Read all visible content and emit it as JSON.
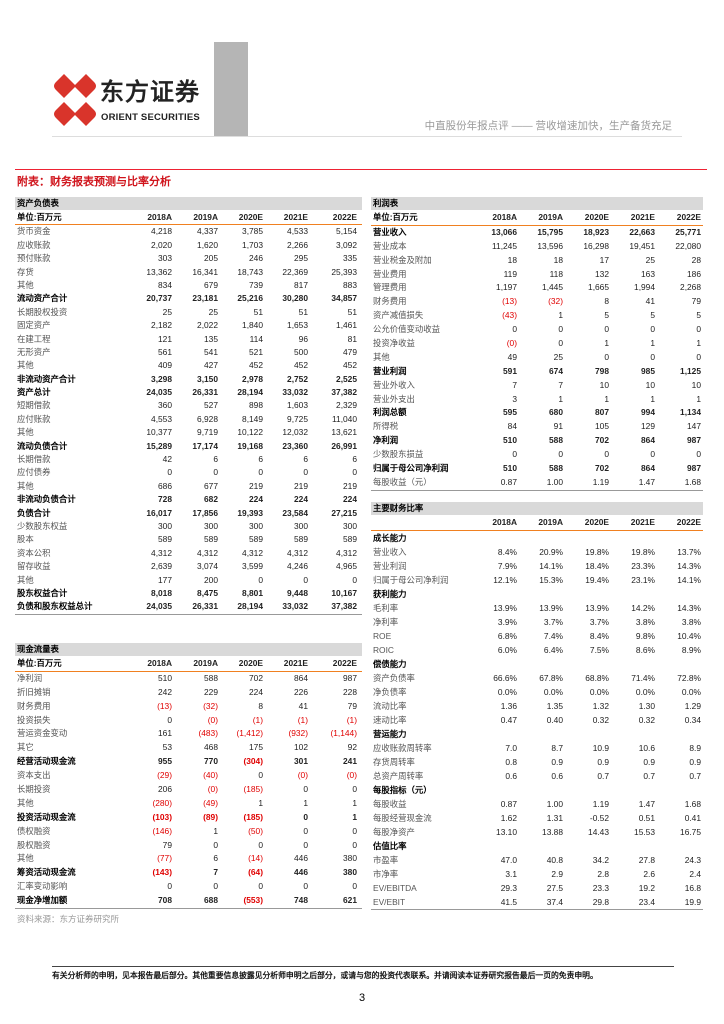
{
  "header": {
    "logo_cn": "东方证券",
    "logo_en": "ORIENT SECURITIES",
    "brand_color": "#d9342b",
    "subtitle": "中直股份年报点评 —— 营收增速加快，生产备货充足"
  },
  "appendix_title": "附表：财务报表预测与比率分析",
  "years": [
    "2018A",
    "2019A",
    "2020E",
    "2021E",
    "2022E"
  ],
  "unit_label": "单位:百万元",
  "balance_sheet": {
    "title": "资产负债表",
    "rows": [
      {
        "label": "货币资金",
        "values": [
          "4,218",
          "4,337",
          "3,785",
          "4,533",
          "5,154"
        ]
      },
      {
        "label": "应收账款",
        "values": [
          "2,020",
          "1,620",
          "1,703",
          "2,266",
          "3,092"
        ]
      },
      {
        "label": "预付账款",
        "values": [
          "303",
          "205",
          "246",
          "295",
          "335"
        ]
      },
      {
        "label": "存货",
        "values": [
          "13,362",
          "16,341",
          "18,743",
          "22,369",
          "25,393"
        ]
      },
      {
        "label": "其他",
        "values": [
          "834",
          "679",
          "739",
          "817",
          "883"
        ]
      },
      {
        "label": "流动资产合计",
        "values": [
          "20,737",
          "23,181",
          "25,216",
          "30,280",
          "34,857"
        ],
        "bold": true
      },
      {
        "label": "长期股权投资",
        "values": [
          "25",
          "25",
          "51",
          "51",
          "51"
        ]
      },
      {
        "label": "固定资产",
        "values": [
          "2,182",
          "2,022",
          "1,840",
          "1,653",
          "1,461"
        ]
      },
      {
        "label": "在建工程",
        "values": [
          "121",
          "135",
          "114",
          "96",
          "81"
        ]
      },
      {
        "label": "无形资产",
        "values": [
          "561",
          "541",
          "521",
          "500",
          "479"
        ]
      },
      {
        "label": "其他",
        "values": [
          "409",
          "427",
          "452",
          "452",
          "452"
        ]
      },
      {
        "label": "非流动资产合计",
        "values": [
          "3,298",
          "3,150",
          "2,978",
          "2,752",
          "2,525"
        ],
        "bold": true
      },
      {
        "label": "资产总计",
        "values": [
          "24,035",
          "26,331",
          "28,194",
          "33,032",
          "37,382"
        ],
        "bold": true
      },
      {
        "label": "短期借款",
        "values": [
          "360",
          "527",
          "898",
          "1,603",
          "2,329"
        ]
      },
      {
        "label": "应付账款",
        "values": [
          "4,553",
          "6,928",
          "8,149",
          "9,725",
          "11,040"
        ]
      },
      {
        "label": "其他",
        "values": [
          "10,377",
          "9,719",
          "10,122",
          "12,032",
          "13,621"
        ]
      },
      {
        "label": "流动负债合计",
        "values": [
          "15,289",
          "17,174",
          "19,168",
          "23,360",
          "26,991"
        ],
        "bold": true
      },
      {
        "label": "长期借款",
        "values": [
          "42",
          "6",
          "6",
          "6",
          "6"
        ]
      },
      {
        "label": "应付债券",
        "values": [
          "0",
          "0",
          "0",
          "0",
          "0"
        ]
      },
      {
        "label": "其他",
        "values": [
          "686",
          "677",
          "219",
          "219",
          "219"
        ]
      },
      {
        "label": "非流动负债合计",
        "values": [
          "728",
          "682",
          "224",
          "224",
          "224"
        ],
        "bold": true
      },
      {
        "label": "负债合计",
        "values": [
          "16,017",
          "17,856",
          "19,393",
          "23,584",
          "27,215"
        ],
        "bold": true
      },
      {
        "label": "少数股东权益",
        "values": [
          "300",
          "300",
          "300",
          "300",
          "300"
        ]
      },
      {
        "label": "股本",
        "values": [
          "589",
          "589",
          "589",
          "589",
          "589"
        ]
      },
      {
        "label": "资本公积",
        "values": [
          "4,312",
          "4,312",
          "4,312",
          "4,312",
          "4,312"
        ]
      },
      {
        "label": "留存收益",
        "values": [
          "2,639",
          "3,074",
          "3,599",
          "4,246",
          "4,965"
        ]
      },
      {
        "label": "其他",
        "values": [
          "177",
          "200",
          "0",
          "0",
          "0"
        ]
      },
      {
        "label": "股东权益合计",
        "values": [
          "8,018",
          "8,475",
          "8,801",
          "9,448",
          "10,167"
        ],
        "bold": true
      },
      {
        "label": "负债和股东权益总计",
        "values": [
          "24,035",
          "26,331",
          "28,194",
          "33,032",
          "37,382"
        ],
        "bold": true
      }
    ]
  },
  "cash_flow": {
    "title": "现金流量表",
    "rows": [
      {
        "label": "净利润",
        "values": [
          "510",
          "588",
          "702",
          "864",
          "987"
        ]
      },
      {
        "label": "折旧摊销",
        "values": [
          "242",
          "229",
          "224",
          "226",
          "228"
        ]
      },
      {
        "label": "财务费用",
        "values": [
          "(13)",
          "(32)",
          "8",
          "41",
          "79"
        ]
      },
      {
        "label": "投资损失",
        "values": [
          "0",
          "(0)",
          "(1)",
          "(1)",
          "(1)"
        ]
      },
      {
        "label": "营运资金变动",
        "values": [
          "161",
          "(483)",
          "(1,412)",
          "(932)",
          "(1,144)"
        ]
      },
      {
        "label": "其它",
        "values": [
          "53",
          "468",
          "175",
          "102",
          "92"
        ]
      },
      {
        "label": "经营活动现金流",
        "values": [
          "955",
          "770",
          "(304)",
          "301",
          "241"
        ],
        "bold": true
      },
      {
        "label": "资本支出",
        "values": [
          "(29)",
          "(40)",
          "0",
          "(0)",
          "(0)"
        ]
      },
      {
        "label": "长期投资",
        "values": [
          "206",
          "(0)",
          "(185)",
          "0",
          "0"
        ]
      },
      {
        "label": "其他",
        "values": [
          "(280)",
          "(49)",
          "1",
          "1",
          "1"
        ]
      },
      {
        "label": "投资活动现金流",
        "values": [
          "(103)",
          "(89)",
          "(185)",
          "0",
          "1"
        ],
        "bold": true
      },
      {
        "label": "债权融资",
        "values": [
          "(146)",
          "1",
          "(50)",
          "0",
          "0"
        ]
      },
      {
        "label": "股权融资",
        "values": [
          "79",
          "0",
          "0",
          "0",
          "0"
        ]
      },
      {
        "label": "其他",
        "values": [
          "(77)",
          "6",
          "(14)",
          "446",
          "380"
        ]
      },
      {
        "label": "筹资活动现金流",
        "values": [
          "(143)",
          "7",
          "(64)",
          "446",
          "380"
        ],
        "bold": true
      },
      {
        "label": "汇率变动影响",
        "values": [
          "0",
          "0",
          "0",
          "0",
          "0"
        ]
      },
      {
        "label": "现金净增加额",
        "values": [
          "708",
          "688",
          "(553)",
          "748",
          "621"
        ],
        "bold": true
      }
    ]
  },
  "income_statement": {
    "title": "利润表",
    "rows": [
      {
        "label": "营业收入",
        "values": [
          "13,066",
          "15,795",
          "18,923",
          "22,663",
          "25,771"
        ],
        "bold": true
      },
      {
        "label": "营业成本",
        "values": [
          "11,245",
          "13,596",
          "16,298",
          "19,451",
          "22,080"
        ]
      },
      {
        "label": "营业税金及附加",
        "values": [
          "18",
          "18",
          "17",
          "25",
          "28"
        ]
      },
      {
        "label": "营业费用",
        "values": [
          "119",
          "118",
          "132",
          "163",
          "186"
        ]
      },
      {
        "label": "管理费用",
        "values": [
          "1,197",
          "1,445",
          "1,665",
          "1,994",
          "2,268"
        ]
      },
      {
        "label": "财务费用",
        "values": [
          "(13)",
          "(32)",
          "8",
          "41",
          "79"
        ]
      },
      {
        "label": "资产减值损失",
        "values": [
          "(43)",
          "1",
          "5",
          "5",
          "5"
        ]
      },
      {
        "label": "公允价值变动收益",
        "values": [
          "0",
          "0",
          "0",
          "0",
          "0"
        ]
      },
      {
        "label": "投资净收益",
        "values": [
          "(0)",
          "0",
          "1",
          "1",
          "1"
        ]
      },
      {
        "label": "其他",
        "values": [
          "49",
          "25",
          "0",
          "0",
          "0"
        ]
      },
      {
        "label": "营业利润",
        "values": [
          "591",
          "674",
          "798",
          "985",
          "1,125"
        ],
        "bold": true
      },
      {
        "label": "营业外收入",
        "values": [
          "7",
          "7",
          "10",
          "10",
          "10"
        ]
      },
      {
        "label": "营业外支出",
        "values": [
          "3",
          "1",
          "1",
          "1",
          "1"
        ]
      },
      {
        "label": "利润总额",
        "values": [
          "595",
          "680",
          "807",
          "994",
          "1,134"
        ],
        "bold": true
      },
      {
        "label": "所得税",
        "values": [
          "84",
          "91",
          "105",
          "129",
          "147"
        ]
      },
      {
        "label": "净利润",
        "values": [
          "510",
          "588",
          "702",
          "864",
          "987"
        ],
        "bold": true
      },
      {
        "label": "少数股东损益",
        "values": [
          "0",
          "0",
          "0",
          "0",
          "0"
        ]
      },
      {
        "label": "归属于母公司净利润",
        "values": [
          "510",
          "588",
          "702",
          "864",
          "987"
        ],
        "bold": true
      },
      {
        "label": "每股收益（元）",
        "values": [
          "0.87",
          "1.00",
          "1.19",
          "1.47",
          "1.68"
        ]
      }
    ]
  },
  "ratios": {
    "title": "主要财务比率",
    "rows": [
      {
        "label": "成长能力",
        "values": [],
        "bold": true
      },
      {
        "label": "营业收入",
        "values": [
          "8.4%",
          "20.9%",
          "19.8%",
          "19.8%",
          "13.7%"
        ]
      },
      {
        "label": "营业利润",
        "values": [
          "7.9%",
          "14.1%",
          "18.4%",
          "23.3%",
          "14.3%"
        ]
      },
      {
        "label": "归属于母公司净利润",
        "values": [
          "12.1%",
          "15.3%",
          "19.4%",
          "23.1%",
          "14.1%"
        ]
      },
      {
        "label": "获利能力",
        "values": [],
        "bold": true
      },
      {
        "label": "毛利率",
        "values": [
          "13.9%",
          "13.9%",
          "13.9%",
          "14.2%",
          "14.3%"
        ]
      },
      {
        "label": "净利率",
        "values": [
          "3.9%",
          "3.7%",
          "3.7%",
          "3.8%",
          "3.8%"
        ]
      },
      {
        "label": "ROE",
        "values": [
          "6.8%",
          "7.4%",
          "8.4%",
          "9.8%",
          "10.4%"
        ]
      },
      {
        "label": "ROIC",
        "values": [
          "6.0%",
          "6.4%",
          "7.5%",
          "8.6%",
          "8.9%"
        ]
      },
      {
        "label": "偿债能力",
        "values": [],
        "bold": true
      },
      {
        "label": "资产负债率",
        "values": [
          "66.6%",
          "67.8%",
          "68.8%",
          "71.4%",
          "72.8%"
        ]
      },
      {
        "label": "净负债率",
        "values": [
          "0.0%",
          "0.0%",
          "0.0%",
          "0.0%",
          "0.0%"
        ]
      },
      {
        "label": "流动比率",
        "values": [
          "1.36",
          "1.35",
          "1.32",
          "1.30",
          "1.29"
        ]
      },
      {
        "label": "速动比率",
        "values": [
          "0.47",
          "0.40",
          "0.32",
          "0.32",
          "0.34"
        ]
      },
      {
        "label": "营运能力",
        "values": [],
        "bold": true
      },
      {
        "label": "应收账款周转率",
        "values": [
          "7.0",
          "8.7",
          "10.9",
          "10.6",
          "8.9"
        ]
      },
      {
        "label": "存货周转率",
        "values": [
          "0.8",
          "0.9",
          "0.9",
          "0.9",
          "0.9"
        ]
      },
      {
        "label": "总资产周转率",
        "values": [
          "0.6",
          "0.6",
          "0.7",
          "0.7",
          "0.7"
        ]
      },
      {
        "label": "每股指标（元）",
        "values": [],
        "bold": true
      },
      {
        "label": "每股收益",
        "values": [
          "0.87",
          "1.00",
          "1.19",
          "1.47",
          "1.68"
        ]
      },
      {
        "label": "每股经营现金流",
        "values": [
          "1.62",
          "1.31",
          "-0.52",
          "0.51",
          "0.41"
        ]
      },
      {
        "label": "每股净资产",
        "values": [
          "13.10",
          "13.88",
          "14.43",
          "15.53",
          "16.75"
        ]
      },
      {
        "label": "估值比率",
        "values": [],
        "bold": true
      },
      {
        "label": "市盈率",
        "values": [
          "47.0",
          "40.8",
          "34.2",
          "27.8",
          "24.3"
        ]
      },
      {
        "label": "市净率",
        "values": [
          "3.1",
          "2.9",
          "2.8",
          "2.6",
          "2.4"
        ]
      },
      {
        "label": "EV/EBITDA",
        "values": [
          "29.3",
          "27.5",
          "23.3",
          "19.2",
          "16.8"
        ]
      },
      {
        "label": "EV/EBIT",
        "values": [
          "41.5",
          "37.4",
          "29.8",
          "23.4",
          "19.9"
        ]
      }
    ]
  },
  "negative_color": "#e00000",
  "source": "资料来源：东方证券研究所",
  "disclaimer": "有关分析师的申明，见本报告最后部分。其他重要信息披露见分析师申明之后部分，或请与您的投资代表联系。并请阅读本证券研究报告最后一页的免责申明。",
  "page_number": "3"
}
